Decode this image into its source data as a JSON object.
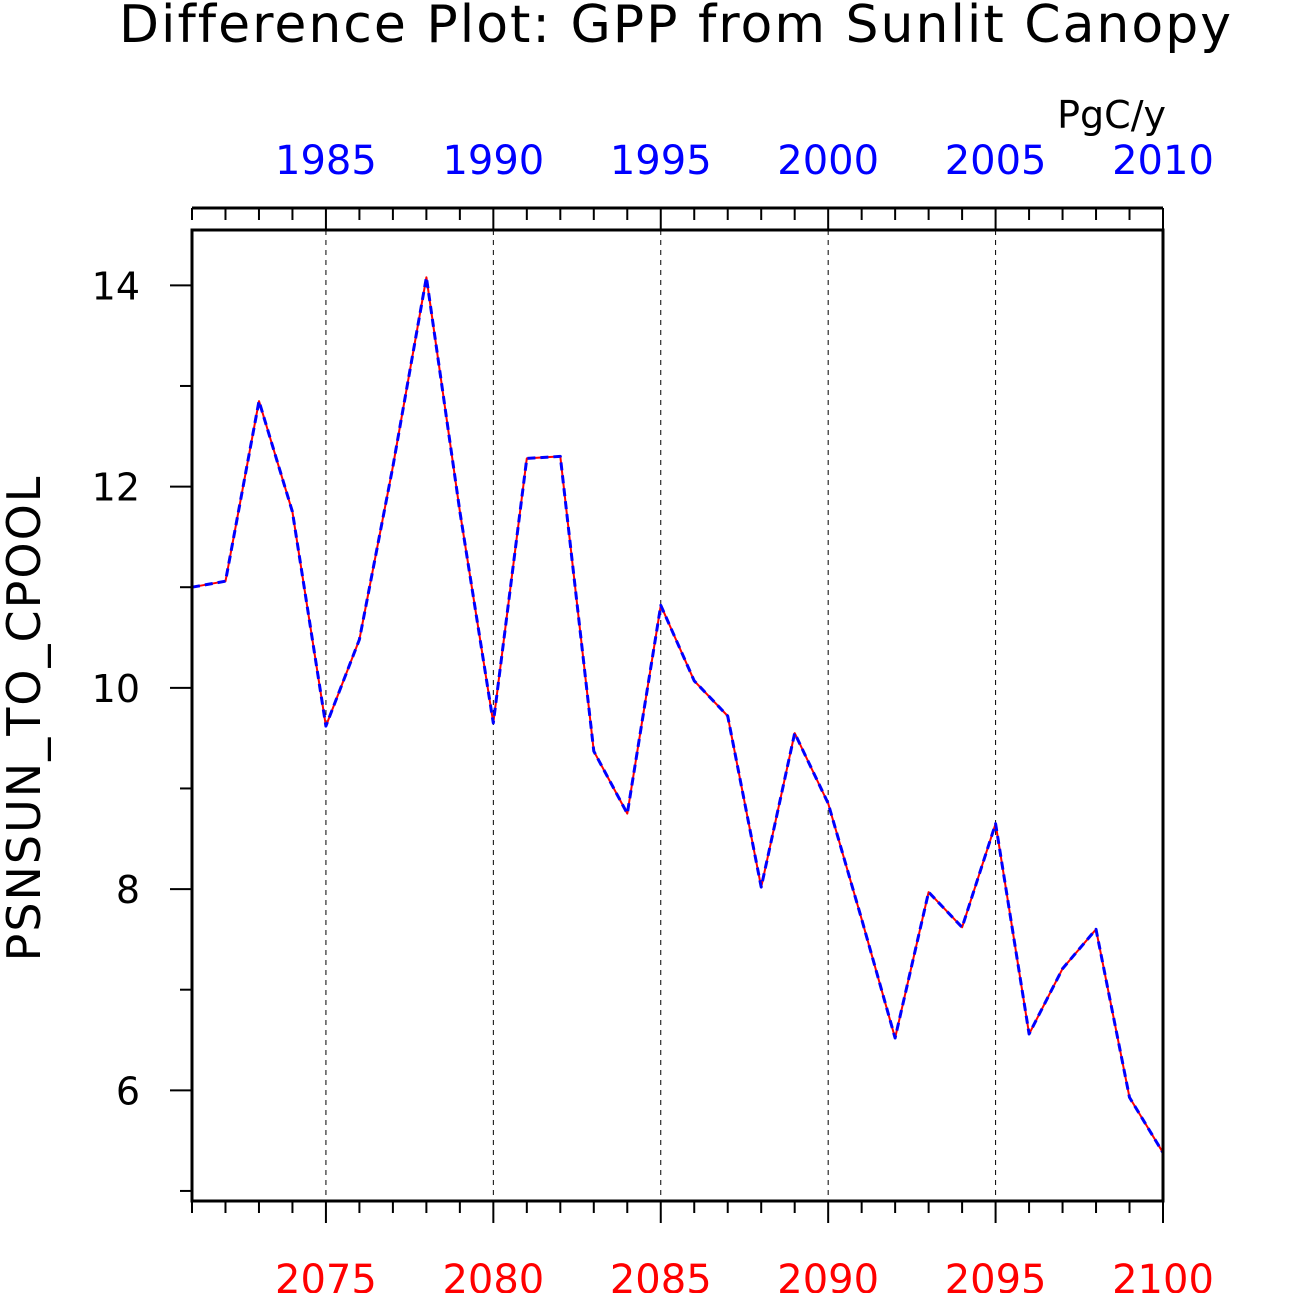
{
  "chart_data": {
    "type": "line",
    "title": "Difference Plot: GPP from Sunlit Canopy",
    "units": "PgC/y",
    "ylabel": "PSNSUN_TO_CPOOL",
    "xlabel": "",
    "ylim": [
      4.9,
      14.55
    ],
    "y_ticks": [
      6,
      8,
      10,
      12,
      14
    ],
    "x_bottom": {
      "range": [
        2071,
        2100
      ],
      "ticks": [
        2075,
        2080,
        2085,
        2090,
        2095,
        2100
      ],
      "color": "#ff0000"
    },
    "x_top": {
      "range": [
        1981,
        2010
      ],
      "ticks": [
        1985,
        1990,
        1995,
        2000,
        2005,
        2010
      ],
      "color": "#0000ff"
    },
    "grid": "vertical dashed at bottom-axis major ticks",
    "x": [
      2071,
      2072,
      2073,
      2074,
      2075,
      2076,
      2077,
      2078,
      2079,
      2080,
      2081,
      2082,
      2083,
      2084,
      2085,
      2086,
      2087,
      2088,
      2089,
      2090,
      2091,
      2092,
      2093,
      2094,
      2095,
      2096,
      2097,
      2098,
      2099,
      2100
    ],
    "series": [
      {
        "color": "#ff0000",
        "style": "solid",
        "values": [
          11.0,
          11.06,
          12.85,
          11.75,
          9.62,
          10.48,
          12.2,
          14.08,
          11.75,
          9.65,
          12.28,
          12.3,
          9.37,
          8.75,
          10.82,
          10.07,
          9.72,
          8.02,
          9.55,
          8.85,
          7.7,
          6.52,
          7.97,
          7.62,
          8.65,
          6.56,
          7.21,
          7.6,
          5.93,
          5.38
        ]
      },
      {
        "color": "#0000ff",
        "style": "dashed",
        "values": [
          11.0,
          11.06,
          12.85,
          11.75,
          9.62,
          10.48,
          12.2,
          14.08,
          11.75,
          9.65,
          12.28,
          12.3,
          9.37,
          8.75,
          10.82,
          10.07,
          9.72,
          8.02,
          9.55,
          8.85,
          7.7,
          6.52,
          7.97,
          7.62,
          8.65,
          6.56,
          7.21,
          7.6,
          5.93,
          5.38
        ]
      }
    ]
  }
}
